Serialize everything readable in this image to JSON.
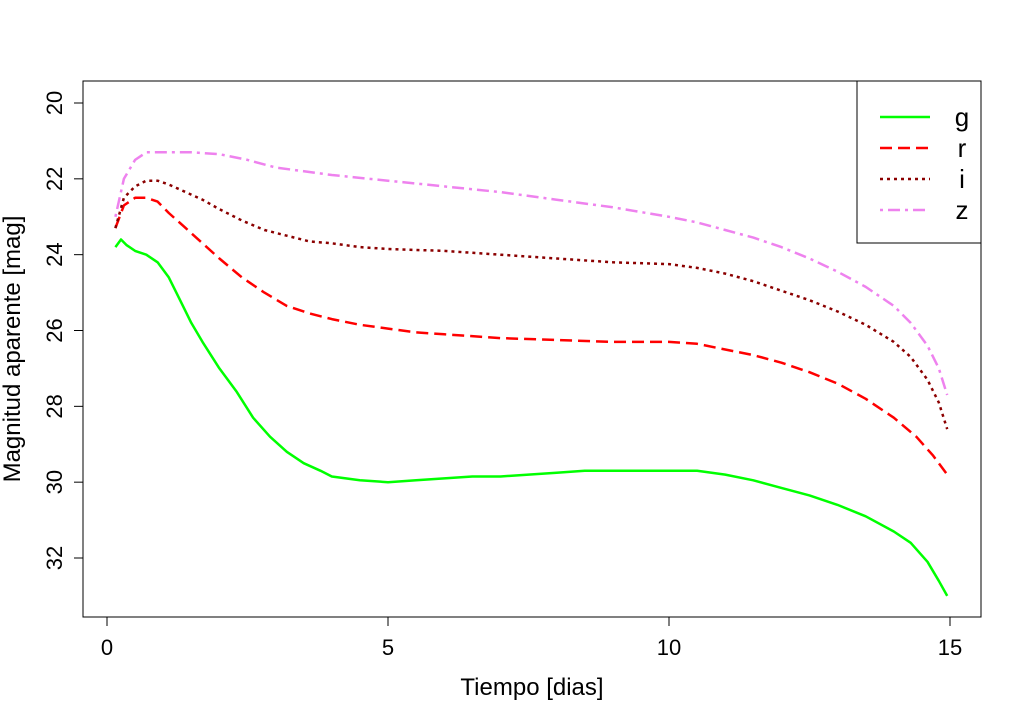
{
  "chart_data": {
    "type": "line",
    "xlabel": "Tiempo [dias]",
    "ylabel": "Magnitud aparente [mag]",
    "xlim": [
      0,
      15
    ],
    "ylim": [
      33.5,
      19.5
    ],
    "y_reversed": true,
    "xticks": [
      "0",
      "5",
      "10",
      "15"
    ],
    "yticks": [
      "20",
      "22",
      "24",
      "26",
      "28",
      "30",
      "32"
    ],
    "legend_position": "top-right",
    "grid": false,
    "series": [
      {
        "name": "g",
        "color": "#00ff00",
        "dash": "solid",
        "x": [
          0.15,
          0.25,
          0.35,
          0.5,
          0.7,
          0.9,
          1.1,
          1.3,
          1.5,
          1.7,
          2.0,
          2.3,
          2.6,
          2.9,
          3.2,
          3.5,
          3.8,
          4.0,
          4.5,
          5.0,
          5.5,
          6.0,
          6.5,
          7.0,
          7.5,
          8.0,
          8.5,
          9.0,
          9.5,
          10.0,
          10.5,
          11.0,
          11.5,
          12.0,
          12.5,
          13.0,
          13.5,
          14.0,
          14.3,
          14.6,
          14.8,
          14.95
        ],
        "y": [
          23.8,
          23.6,
          23.75,
          23.9,
          24.0,
          24.2,
          24.6,
          25.2,
          25.8,
          26.3,
          27.0,
          27.6,
          28.3,
          28.8,
          29.2,
          29.5,
          29.7,
          29.85,
          29.95,
          30.0,
          29.95,
          29.9,
          29.85,
          29.85,
          29.8,
          29.75,
          29.7,
          29.7,
          29.7,
          29.7,
          29.7,
          29.8,
          29.95,
          30.15,
          30.35,
          30.6,
          30.9,
          31.3,
          31.6,
          32.1,
          32.6,
          33.0
        ]
      },
      {
        "name": "r",
        "color": "#ff0000",
        "dash": "dashed",
        "x": [
          0.15,
          0.3,
          0.5,
          0.7,
          0.9,
          1.1,
          1.4,
          1.7,
          2.0,
          2.4,
          2.8,
          3.2,
          3.6,
          4.0,
          4.5,
          5.0,
          5.5,
          6.0,
          7.0,
          8.0,
          9.0,
          10.0,
          10.5,
          11.0,
          11.5,
          12.0,
          12.5,
          13.0,
          13.5,
          14.0,
          14.4,
          14.7,
          14.95
        ],
        "y": [
          23.3,
          22.7,
          22.5,
          22.5,
          22.6,
          22.9,
          23.3,
          23.7,
          24.1,
          24.6,
          25.0,
          25.35,
          25.55,
          25.7,
          25.85,
          25.95,
          26.05,
          26.1,
          26.2,
          26.25,
          26.3,
          26.3,
          26.35,
          26.5,
          26.65,
          26.85,
          27.1,
          27.4,
          27.8,
          28.3,
          28.8,
          29.3,
          29.8
        ]
      },
      {
        "name": "i",
        "color": "#8b0000",
        "dash": "dotted",
        "x": [
          0.15,
          0.3,
          0.5,
          0.7,
          0.9,
          1.1,
          1.4,
          1.7,
          2.0,
          2.4,
          2.8,
          3.2,
          3.6,
          4.0,
          4.5,
          5.0,
          6.0,
          7.0,
          8.0,
          9.0,
          10.0,
          10.5,
          11.0,
          11.5,
          12.0,
          12.5,
          13.0,
          13.5,
          14.0,
          14.3,
          14.6,
          14.8,
          14.95
        ],
        "y": [
          23.3,
          22.5,
          22.2,
          22.05,
          22.05,
          22.15,
          22.35,
          22.55,
          22.8,
          23.1,
          23.35,
          23.5,
          23.65,
          23.7,
          23.8,
          23.85,
          23.9,
          24.0,
          24.1,
          24.2,
          24.25,
          24.35,
          24.5,
          24.7,
          24.95,
          25.2,
          25.5,
          25.85,
          26.3,
          26.7,
          27.3,
          27.9,
          28.6
        ]
      },
      {
        "name": "z",
        "color": "#ee82ee",
        "dash": "dotdash",
        "x": [
          0.15,
          0.3,
          0.5,
          0.7,
          0.9,
          1.2,
          1.5,
          2.0,
          2.5,
          3.0,
          4.0,
          5.0,
          6.0,
          7.0,
          8.0,
          9.0,
          10.0,
          10.5,
          11.0,
          11.5,
          12.0,
          12.5,
          13.0,
          13.5,
          14.0,
          14.3,
          14.6,
          14.8,
          14.95
        ],
        "y": [
          23.0,
          22.0,
          21.5,
          21.3,
          21.3,
          21.3,
          21.3,
          21.35,
          21.5,
          21.7,
          21.9,
          22.05,
          22.2,
          22.35,
          22.55,
          22.75,
          23.0,
          23.15,
          23.35,
          23.55,
          23.8,
          24.1,
          24.45,
          24.85,
          25.35,
          25.8,
          26.4,
          27.0,
          27.7
        ]
      }
    ]
  }
}
